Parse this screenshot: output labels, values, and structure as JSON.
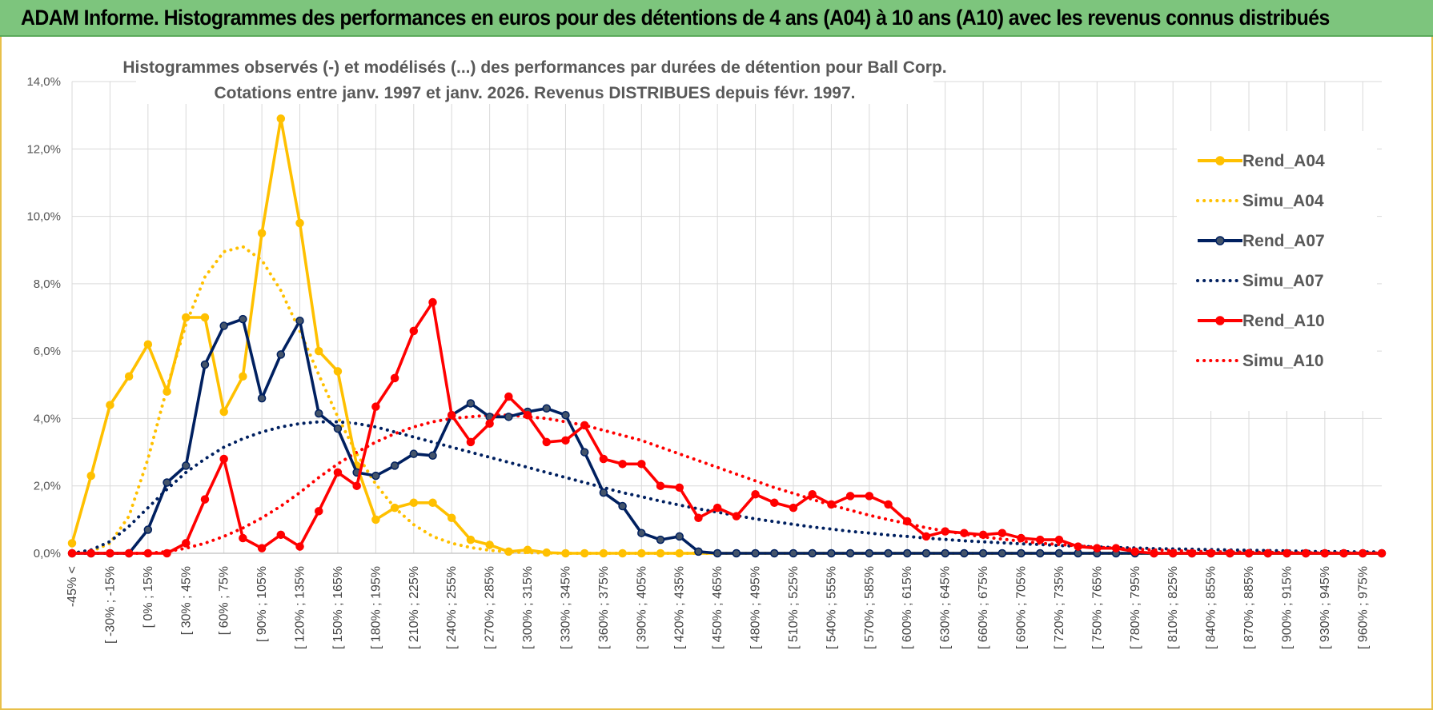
{
  "header": {
    "title": "ADAM Informe. Histogrammes des performances en euros pour des détentions de 4 ans (A04) à 10 ans (A10) avec les revenus connus distribués"
  },
  "chart_data": {
    "type": "line",
    "title_line1": "Histogrammes observés (-) et modélisés (...) des performances par durées de détention pour Ball Corp.",
    "title_line2": "Cotations entre janv. 1997 et janv. 2026. Revenus DISTRIBUES depuis févr. 1997.",
    "ylim": [
      0,
      14
    ],
    "yticks": [
      "0,0%",
      "2,0%",
      "4,0%",
      "6,0%",
      "8,0%",
      "10,0%",
      "12,0%",
      "14,0%"
    ],
    "x_labels_shown": [
      "-45% <",
      "[ -30% ; -15%",
      "[ 0% ; 15%",
      "[ 30% ; 45%",
      "[ 60% ; 75%",
      "[ 90% ; 105%",
      "[ 120% ; 135%",
      "[ 150% ; 165%",
      "[ 180% ; 195%",
      "[ 210% ; 225%",
      "[ 240% ; 255%",
      "[ 270% ; 285%",
      "[ 300% ; 315%",
      "[ 330% ; 345%",
      "[ 360% ; 375%",
      "[ 390% ; 405%",
      "[ 420% ; 435%",
      "[ 450% ; 465%",
      "[ 480% ; 495%",
      "[ 510% ; 525%",
      "[ 540% ; 555%",
      "[ 570% ; 585%",
      "[ 600% ; 615%",
      "[ 630% ; 645%",
      "[ 660% ; 675%",
      "[ 690% ; 705%",
      "[ 720% ; 735%",
      "[ 750% ; 765%",
      "[ 780% ; 795%",
      "[ 810% ; 825%",
      "[ 840% ; 855%",
      "[ 870% ; 885%",
      "[ 900% ; 915%",
      "[ 930% ; 945%",
      "[ 960% ; 975%"
    ],
    "n_categories": 70,
    "series": [
      {
        "name": "Rend_A04",
        "color": "#FFC000",
        "style": "solid",
        "values": [
          0.3,
          2.3,
          4.4,
          5.25,
          6.2,
          4.8,
          7.0,
          7.0,
          4.2,
          5.25,
          9.5,
          12.9,
          9.8,
          6.0,
          5.4,
          2.6,
          1.0,
          1.35,
          1.5,
          1.5,
          1.05,
          0.4,
          0.25,
          0.05,
          0.1,
          0.02,
          0,
          0,
          0,
          0,
          0,
          0,
          0,
          0,
          0,
          0,
          0,
          0,
          0,
          0,
          0,
          0,
          0,
          0,
          0,
          0,
          0,
          0,
          0,
          0,
          0,
          0,
          0,
          0,
          0,
          0,
          0,
          0,
          0,
          0,
          0,
          0,
          0,
          0,
          0,
          0,
          0,
          0,
          0,
          0
        ]
      },
      {
        "name": "Simu_A04",
        "color": "#FFC000",
        "style": "dotted",
        "values": [
          0,
          0.05,
          0.3,
          1.1,
          2.8,
          4.9,
          6.8,
          8.2,
          8.95,
          9.1,
          8.7,
          7.8,
          6.6,
          5.3,
          4.05,
          2.95,
          2.05,
          1.35,
          0.85,
          0.5,
          0.3,
          0.17,
          0.09,
          0.04,
          0.02,
          0.01,
          0,
          0,
          0,
          0,
          0,
          0,
          0,
          0,
          0,
          0,
          0,
          0,
          0,
          0,
          0,
          0,
          0,
          0,
          0,
          0,
          0,
          0,
          0,
          0,
          0,
          0,
          0,
          0,
          0,
          0,
          0,
          0,
          0,
          0,
          0,
          0,
          0,
          0,
          0,
          0,
          0,
          0,
          0,
          0
        ]
      },
      {
        "name": "Rend_A07",
        "color": "#002060",
        "style": "solid",
        "values": [
          0,
          0,
          0,
          0,
          0.7,
          2.1,
          2.6,
          5.6,
          6.75,
          6.95,
          4.6,
          5.9,
          6.9,
          4.15,
          3.7,
          2.4,
          2.3,
          2.6,
          2.95,
          2.9,
          4.1,
          4.45,
          4.05,
          4.05,
          4.2,
          4.3,
          4.1,
          3.0,
          1.8,
          1.4,
          0.6,
          0.4,
          0.5,
          0.05,
          0,
          0,
          0,
          0,
          0,
          0,
          0,
          0,
          0,
          0,
          0,
          0,
          0,
          0,
          0,
          0,
          0,
          0,
          0,
          0,
          0,
          0,
          0,
          0,
          0,
          0,
          0,
          0,
          0,
          0,
          0,
          0,
          0,
          0,
          0,
          0
        ]
      },
      {
        "name": "Simu_A07",
        "color": "#002060",
        "style": "dotted",
        "values": [
          0,
          0.1,
          0.35,
          0.8,
          1.35,
          1.9,
          2.4,
          2.8,
          3.15,
          3.4,
          3.6,
          3.75,
          3.85,
          3.9,
          3.9,
          3.85,
          3.75,
          3.6,
          3.45,
          3.3,
          3.15,
          3.0,
          2.85,
          2.7,
          2.55,
          2.4,
          2.25,
          2.1,
          1.95,
          1.8,
          1.68,
          1.55,
          1.43,
          1.32,
          1.22,
          1.12,
          1.02,
          0.94,
          0.86,
          0.78,
          0.72,
          0.65,
          0.6,
          0.54,
          0.5,
          0.45,
          0.41,
          0.37,
          0.34,
          0.31,
          0.28,
          0.26,
          0.23,
          0.21,
          0.19,
          0.17,
          0.16,
          0.14,
          0.13,
          0.12,
          0.11,
          0.1,
          0.09,
          0.08,
          0.07,
          0.06,
          0.05,
          0.05,
          0.04,
          0.04
        ]
      },
      {
        "name": "Rend_A10",
        "color": "#FF0000",
        "style": "solid",
        "values": [
          0,
          0,
          0,
          0,
          0,
          0,
          0.3,
          1.6,
          2.8,
          0.45,
          0.15,
          0.55,
          0.2,
          1.25,
          2.4,
          2.0,
          4.35,
          5.2,
          6.6,
          7.45,
          4.1,
          3.3,
          3.85,
          4.65,
          4.1,
          3.3,
          3.35,
          3.8,
          2.8,
          2.65,
          2.65,
          2.0,
          1.95,
          1.05,
          1.35,
          1.1,
          1.75,
          1.5,
          1.35,
          1.75,
          1.45,
          1.7,
          1.7,
          1.45,
          0.95,
          0.5,
          0.65,
          0.6,
          0.55,
          0.6,
          0.45,
          0.4,
          0.4,
          0.2,
          0.15,
          0.15,
          0.05,
          0,
          0,
          0,
          0,
          0,
          0,
          0,
          0,
          0,
          0,
          0,
          0,
          0
        ]
      },
      {
        "name": "Simu_A10",
        "color": "#FF0000",
        "style": "dotted",
        "values": [
          0,
          0,
          0,
          0,
          0,
          0.05,
          0.15,
          0.3,
          0.5,
          0.75,
          1.05,
          1.4,
          1.8,
          2.25,
          2.65,
          3.0,
          3.3,
          3.55,
          3.75,
          3.9,
          4.0,
          4.05,
          4.1,
          4.1,
          4.05,
          4.0,
          3.9,
          3.8,
          3.65,
          3.5,
          3.35,
          3.15,
          2.95,
          2.75,
          2.55,
          2.35,
          2.15,
          1.95,
          1.78,
          1.6,
          1.43,
          1.28,
          1.13,
          1.0,
          0.88,
          0.76,
          0.66,
          0.57,
          0.49,
          0.42,
          0.36,
          0.3,
          0.26,
          0.22,
          0.18,
          0.15,
          0.12,
          0.1,
          0.08,
          0.06,
          0.05,
          0.04,
          0.03,
          0.03,
          0.02,
          0.02,
          0.01,
          0.01,
          0.01,
          0.01
        ]
      }
    ],
    "legend": [
      {
        "label": "Rend_A04",
        "color": "#FFC000",
        "style": "solid",
        "marker": true
      },
      {
        "label": "Simu_A04",
        "color": "#FFC000",
        "style": "dotted",
        "marker": false
      },
      {
        "label": "Rend_A07",
        "color": "#002060",
        "style": "solid",
        "marker": true
      },
      {
        "label": "Simu_A07",
        "color": "#002060",
        "style": "dotted",
        "marker": false
      },
      {
        "label": "Rend_A10",
        "color": "#FF0000",
        "style": "solid",
        "marker": true
      },
      {
        "label": "Simu_A10",
        "color": "#FF0000",
        "style": "dotted",
        "marker": false
      }
    ],
    "legend_position": "right"
  }
}
